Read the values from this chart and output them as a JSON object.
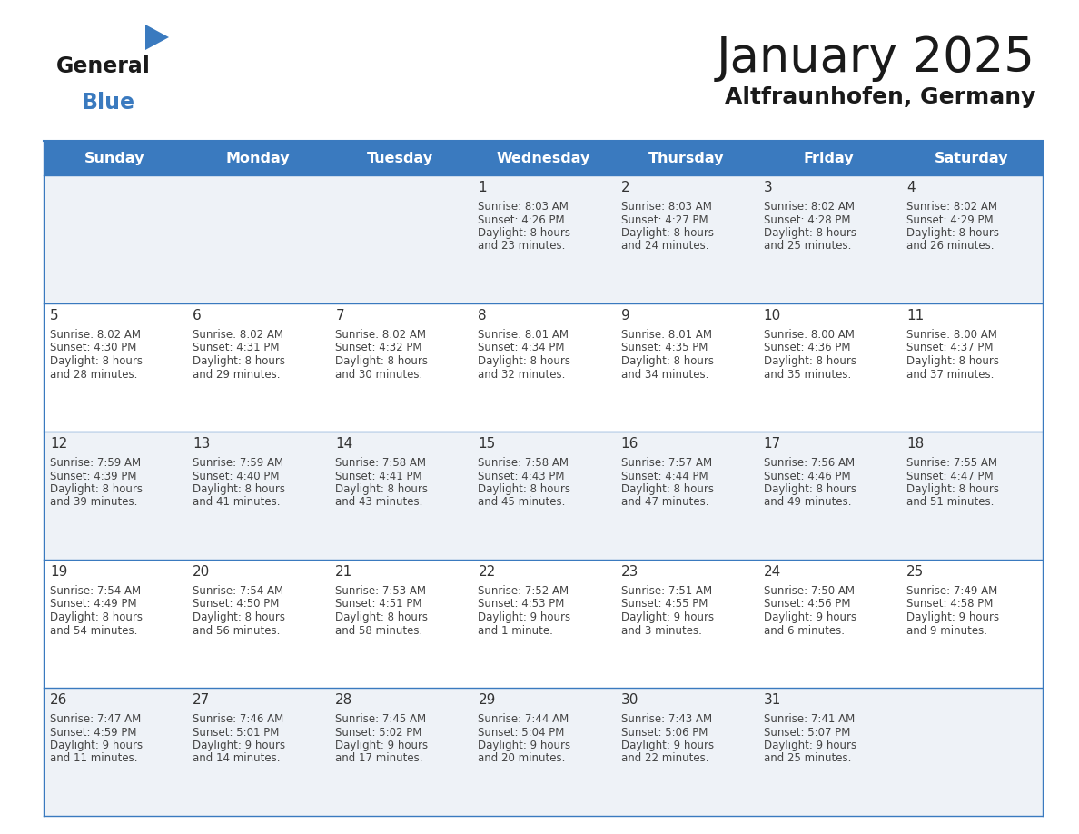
{
  "title": "January 2025",
  "subtitle": "Altfraunhofen, Germany",
  "header_bg": "#3a7abf",
  "header_text": "#ffffff",
  "day_names": [
    "Sunday",
    "Monday",
    "Tuesday",
    "Wednesday",
    "Thursday",
    "Friday",
    "Saturday"
  ],
  "row_bg_light": "#eef2f7",
  "row_bg_white": "#ffffff",
  "divider_color": "#3a7abf",
  "text_color": "#444444",
  "number_color": "#333333",
  "logo_general_color": "#1a1a1a",
  "logo_blue_color": "#3a7abf",
  "logo_triangle_color": "#3a7abf",
  "title_color": "#1a1a1a",
  "days": [
    {
      "date": 1,
      "col": 3,
      "row": 0,
      "sunrise": "8:03 AM",
      "sunset": "4:26 PM",
      "daylight": "8 hours",
      "daylight2": "and 23 minutes."
    },
    {
      "date": 2,
      "col": 4,
      "row": 0,
      "sunrise": "8:03 AM",
      "sunset": "4:27 PM",
      "daylight": "8 hours",
      "daylight2": "and 24 minutes."
    },
    {
      "date": 3,
      "col": 5,
      "row": 0,
      "sunrise": "8:02 AM",
      "sunset": "4:28 PM",
      "daylight": "8 hours",
      "daylight2": "and 25 minutes."
    },
    {
      "date": 4,
      "col": 6,
      "row": 0,
      "sunrise": "8:02 AM",
      "sunset": "4:29 PM",
      "daylight": "8 hours",
      "daylight2": "and 26 minutes."
    },
    {
      "date": 5,
      "col": 0,
      "row": 1,
      "sunrise": "8:02 AM",
      "sunset": "4:30 PM",
      "daylight": "8 hours",
      "daylight2": "and 28 minutes."
    },
    {
      "date": 6,
      "col": 1,
      "row": 1,
      "sunrise": "8:02 AM",
      "sunset": "4:31 PM",
      "daylight": "8 hours",
      "daylight2": "and 29 minutes."
    },
    {
      "date": 7,
      "col": 2,
      "row": 1,
      "sunrise": "8:02 AM",
      "sunset": "4:32 PM",
      "daylight": "8 hours",
      "daylight2": "and 30 minutes."
    },
    {
      "date": 8,
      "col": 3,
      "row": 1,
      "sunrise": "8:01 AM",
      "sunset": "4:34 PM",
      "daylight": "8 hours",
      "daylight2": "and 32 minutes."
    },
    {
      "date": 9,
      "col": 4,
      "row": 1,
      "sunrise": "8:01 AM",
      "sunset": "4:35 PM",
      "daylight": "8 hours",
      "daylight2": "and 34 minutes."
    },
    {
      "date": 10,
      "col": 5,
      "row": 1,
      "sunrise": "8:00 AM",
      "sunset": "4:36 PM",
      "daylight": "8 hours",
      "daylight2": "and 35 minutes."
    },
    {
      "date": 11,
      "col": 6,
      "row": 1,
      "sunrise": "8:00 AM",
      "sunset": "4:37 PM",
      "daylight": "8 hours",
      "daylight2": "and 37 minutes."
    },
    {
      "date": 12,
      "col": 0,
      "row": 2,
      "sunrise": "7:59 AM",
      "sunset": "4:39 PM",
      "daylight": "8 hours",
      "daylight2": "and 39 minutes."
    },
    {
      "date": 13,
      "col": 1,
      "row": 2,
      "sunrise": "7:59 AM",
      "sunset": "4:40 PM",
      "daylight": "8 hours",
      "daylight2": "and 41 minutes."
    },
    {
      "date": 14,
      "col": 2,
      "row": 2,
      "sunrise": "7:58 AM",
      "sunset": "4:41 PM",
      "daylight": "8 hours",
      "daylight2": "and 43 minutes."
    },
    {
      "date": 15,
      "col": 3,
      "row": 2,
      "sunrise": "7:58 AM",
      "sunset": "4:43 PM",
      "daylight": "8 hours",
      "daylight2": "and 45 minutes."
    },
    {
      "date": 16,
      "col": 4,
      "row": 2,
      "sunrise": "7:57 AM",
      "sunset": "4:44 PM",
      "daylight": "8 hours",
      "daylight2": "and 47 minutes."
    },
    {
      "date": 17,
      "col": 5,
      "row": 2,
      "sunrise": "7:56 AM",
      "sunset": "4:46 PM",
      "daylight": "8 hours",
      "daylight2": "and 49 minutes."
    },
    {
      "date": 18,
      "col": 6,
      "row": 2,
      "sunrise": "7:55 AM",
      "sunset": "4:47 PM",
      "daylight": "8 hours",
      "daylight2": "and 51 minutes."
    },
    {
      "date": 19,
      "col": 0,
      "row": 3,
      "sunrise": "7:54 AM",
      "sunset": "4:49 PM",
      "daylight": "8 hours",
      "daylight2": "and 54 minutes."
    },
    {
      "date": 20,
      "col": 1,
      "row": 3,
      "sunrise": "7:54 AM",
      "sunset": "4:50 PM",
      "daylight": "8 hours",
      "daylight2": "and 56 minutes."
    },
    {
      "date": 21,
      "col": 2,
      "row": 3,
      "sunrise": "7:53 AM",
      "sunset": "4:51 PM",
      "daylight": "8 hours",
      "daylight2": "and 58 minutes."
    },
    {
      "date": 22,
      "col": 3,
      "row": 3,
      "sunrise": "7:52 AM",
      "sunset": "4:53 PM",
      "daylight": "9 hours",
      "daylight2": "and 1 minute."
    },
    {
      "date": 23,
      "col": 4,
      "row": 3,
      "sunrise": "7:51 AM",
      "sunset": "4:55 PM",
      "daylight": "9 hours",
      "daylight2": "and 3 minutes."
    },
    {
      "date": 24,
      "col": 5,
      "row": 3,
      "sunrise": "7:50 AM",
      "sunset": "4:56 PM",
      "daylight": "9 hours",
      "daylight2": "and 6 minutes."
    },
    {
      "date": 25,
      "col": 6,
      "row": 3,
      "sunrise": "7:49 AM",
      "sunset": "4:58 PM",
      "daylight": "9 hours",
      "daylight2": "and 9 minutes."
    },
    {
      "date": 26,
      "col": 0,
      "row": 4,
      "sunrise": "7:47 AM",
      "sunset": "4:59 PM",
      "daylight": "9 hours",
      "daylight2": "and 11 minutes."
    },
    {
      "date": 27,
      "col": 1,
      "row": 4,
      "sunrise": "7:46 AM",
      "sunset": "5:01 PM",
      "daylight": "9 hours",
      "daylight2": "and 14 minutes."
    },
    {
      "date": 28,
      "col": 2,
      "row": 4,
      "sunrise": "7:45 AM",
      "sunset": "5:02 PM",
      "daylight": "9 hours",
      "daylight2": "and 17 minutes."
    },
    {
      "date": 29,
      "col": 3,
      "row": 4,
      "sunrise": "7:44 AM",
      "sunset": "5:04 PM",
      "daylight": "9 hours",
      "daylight2": "and 20 minutes."
    },
    {
      "date": 30,
      "col": 4,
      "row": 4,
      "sunrise": "7:43 AM",
      "sunset": "5:06 PM",
      "daylight": "9 hours",
      "daylight2": "and 22 minutes."
    },
    {
      "date": 31,
      "col": 5,
      "row": 4,
      "sunrise": "7:41 AM",
      "sunset": "5:07 PM",
      "daylight": "9 hours",
      "daylight2": "and 25 minutes."
    }
  ]
}
